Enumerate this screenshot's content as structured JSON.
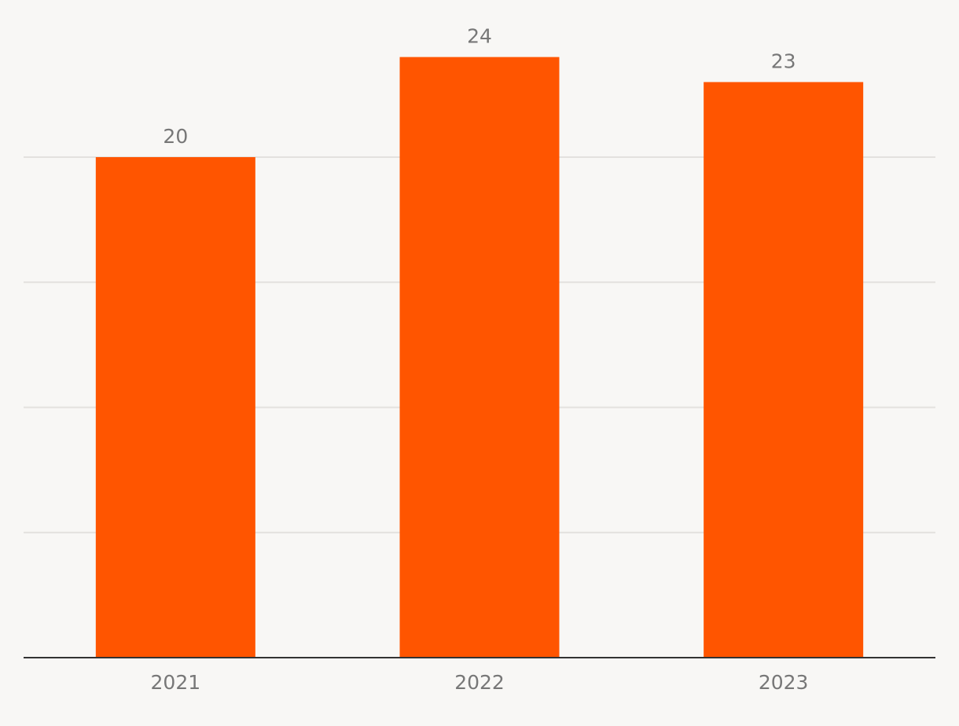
{
  "chart_data": {
    "type": "bar",
    "categories": [
      "2021",
      "2022",
      "2023"
    ],
    "values": [
      20,
      24,
      23
    ],
    "ylim": [
      0,
      25
    ],
    "grid": true,
    "gridline_values": [
      5,
      10,
      15,
      20
    ],
    "data_labels": true,
    "bar_color": "#ff5500"
  }
}
